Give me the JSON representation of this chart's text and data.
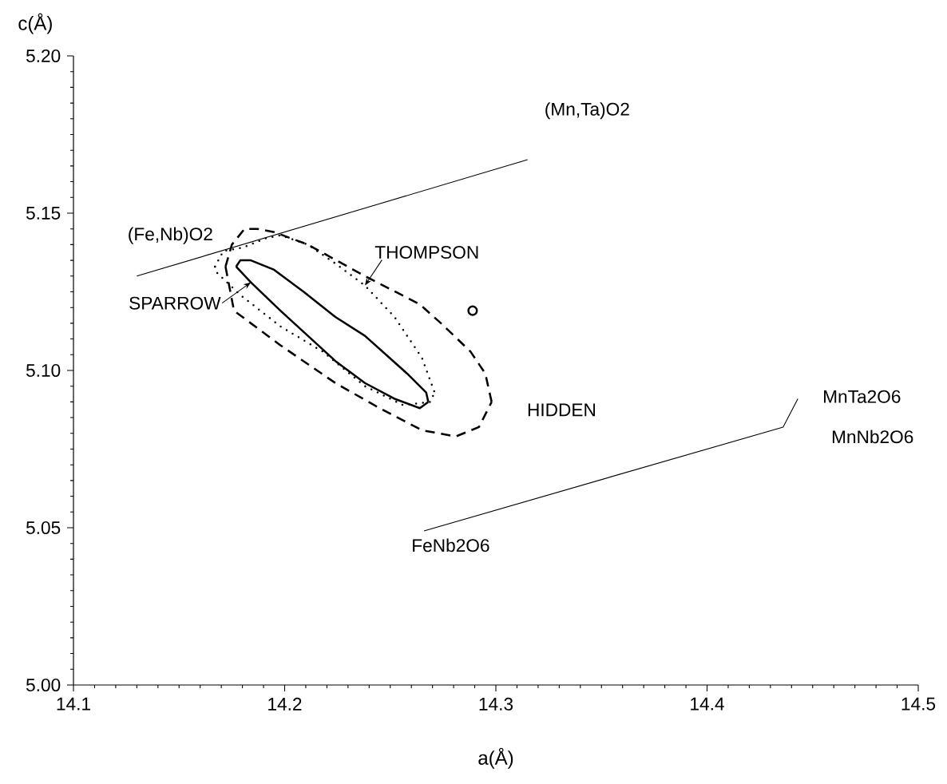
{
  "chart_data": {
    "type": "line",
    "xlabel": "a(Å)",
    "ylabel": "c(Å)",
    "xlim": [
      14.1,
      14.5
    ],
    "ylim": [
      5.0,
      5.2
    ],
    "xticks": [
      14.1,
      14.2,
      14.3,
      14.4,
      14.5
    ],
    "yticks": [
      {
        "value": 5.0,
        "label": "5.00"
      },
      {
        "value": 5.05,
        "label": "5.05"
      },
      {
        "value": 5.1,
        "label": "5.10"
      },
      {
        "value": 5.15,
        "label": "5.15"
      },
      {
        "value": 5.2,
        "label": "5.20"
      }
    ],
    "series": [
      {
        "color": "#000000",
        "line_style": "solid",
        "x": [
          14.13,
          14.315
        ],
        "values": [
          5.13,
          5.167
        ]
      },
      {
        "color": "#000000",
        "line_style": "solid",
        "x": [
          14.266,
          14.436,
          14.443
        ],
        "values": [
          5.049,
          5.082,
          5.091
        ]
      },
      {
        "color": "#000000",
        "line_style": "solid",
        "x": [
          14.177,
          14.179,
          14.184,
          14.195,
          14.209,
          14.224,
          14.238,
          14.258,
          14.267,
          14.268
        ],
        "values": [
          5.133,
          5.135,
          5.135,
          5.132,
          5.125,
          5.117,
          5.111,
          5.099,
          5.093,
          5.09
        ]
      },
      {
        "name": "SPARROW",
        "color": "#000000",
        "line_style": "solid",
        "x": [
          14.177,
          14.184,
          14.198,
          14.211,
          14.224,
          14.238,
          14.252,
          14.264,
          14.268
        ],
        "values": [
          5.133,
          5.128,
          5.119,
          5.111,
          5.103,
          5.096,
          5.091,
          5.088,
          5.09
        ]
      },
      {
        "color": "#000000",
        "line_style": "dotted",
        "x": [
          14.167,
          14.171,
          14.18,
          14.191,
          14.198,
          14.211,
          14.224,
          14.238,
          14.252,
          14.265,
          14.271
        ],
        "values": [
          5.133,
          5.138,
          5.139,
          5.142,
          5.143,
          5.14,
          5.134,
          5.127,
          5.117,
          5.104,
          5.093
        ]
      },
      {
        "color": "#000000",
        "line_style": "dotted",
        "x": [
          14.167,
          14.168,
          14.179,
          14.198,
          14.218,
          14.238,
          14.256,
          14.269,
          14.271
        ],
        "values": [
          5.133,
          5.131,
          5.124,
          5.114,
          5.106,
          5.095,
          5.089,
          5.09,
          5.093
        ]
      },
      {
        "name": "HIDDEN",
        "color": "#000000",
        "line_style": "dashed",
        "x": [
          14.172,
          14.175,
          14.181,
          14.187,
          14.195,
          14.211,
          14.238,
          14.264,
          14.274,
          14.288,
          14.295,
          14.298
        ],
        "values": [
          5.133,
          5.14,
          5.145,
          5.145,
          5.144,
          5.14,
          5.13,
          5.121,
          5.115,
          5.106,
          5.099,
          5.09
        ]
      },
      {
        "color": "#000000",
        "line_style": "dashed",
        "x": [
          14.172,
          14.176,
          14.198,
          14.224,
          14.245,
          14.265,
          14.281,
          14.292,
          14.298
        ],
        "values": [
          5.133,
          5.119,
          5.108,
          5.096,
          5.088,
          5.081,
          5.079,
          5.082,
          5.09
        ]
      },
      {
        "type": "scatter",
        "color": "#000000",
        "marker": "circle",
        "x": [
          14.289
        ],
        "values": [
          5.119
        ]
      }
    ],
    "annotations": [
      {
        "text": "(Mn,Ta)O2",
        "x": 14.315,
        "y": 5.167
      },
      {
        "text": "(Fe,Nb)O2",
        "x": 14.13,
        "y": 5.13
      },
      {
        "text": "FeNb2O6",
        "x": 14.266,
        "y": 5.049
      },
      {
        "text": "MnNb2O6",
        "x": 14.436,
        "y": 5.082
      },
      {
        "text": "MnTa2O6",
        "x": 14.443,
        "y": 5.091
      },
      {
        "text": "THOMPSON",
        "x": 14.238,
        "y": 5.127
      }
    ]
  }
}
